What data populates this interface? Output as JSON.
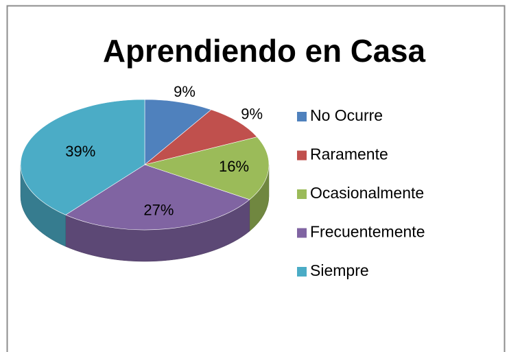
{
  "chart_data": {
    "type": "pie",
    "title": "Aprendiendo en Casa",
    "categories": [
      "No Ocurre",
      "Raramente",
      "Ocasionalmente",
      "Frecuentemente",
      "Siempre"
    ],
    "values": [
      9,
      9,
      16,
      27,
      39
    ],
    "value_labels": [
      "9%",
      "9%",
      "16%",
      "27%",
      "39%"
    ],
    "colors": [
      "#4f81bd",
      "#c0504d",
      "#9bbb59",
      "#8064a2",
      "#4bacc6"
    ],
    "legend": "right"
  }
}
